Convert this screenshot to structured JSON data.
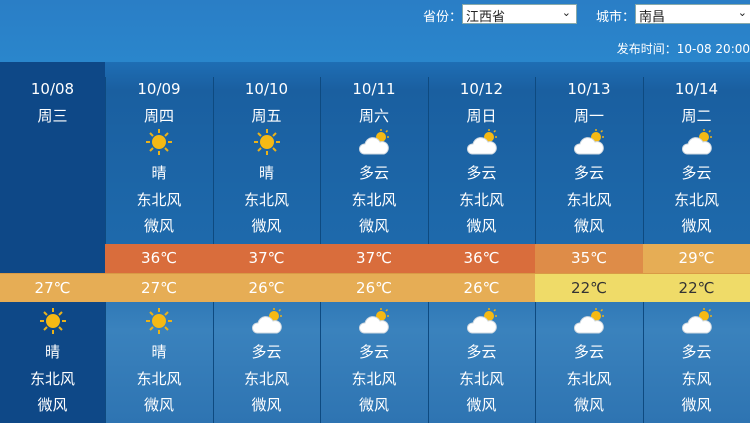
{
  "header": {
    "province_label": "省份：",
    "province_value": "江西省",
    "city_label": "城市：",
    "city_value": "南昌",
    "publish_label": "发布时间：",
    "publish_time": "10-08 20:00"
  },
  "days": [
    {
      "date": "10/08",
      "weekday": "周三",
      "day": null,
      "high": null,
      "low": "27℃",
      "night": {
        "icon": "sunny-icon",
        "weather": "晴",
        "wind": "东北风",
        "force": "微风"
      }
    },
    {
      "date": "10/09",
      "weekday": "周四",
      "day": {
        "icon": "sunny-icon",
        "weather": "晴",
        "wind": "东北风",
        "force": "微风"
      },
      "high": "36℃",
      "low": "27℃",
      "high_color": "#d96d3c",
      "low_color": "#e6ad55",
      "night": {
        "icon": "sunny-icon",
        "weather": "晴",
        "wind": "东北风",
        "force": "微风"
      }
    },
    {
      "date": "10/10",
      "weekday": "周五",
      "day": {
        "icon": "sunny-icon",
        "weather": "晴",
        "wind": "东北风",
        "force": "微风"
      },
      "high": "37℃",
      "low": "26℃",
      "high_color": "#d96d3c",
      "low_color": "#e6ad55",
      "night": {
        "icon": "partly-cloudy-icon",
        "weather": "多云",
        "wind": "东北风",
        "force": "微风"
      }
    },
    {
      "date": "10/11",
      "weekday": "周六",
      "day": {
        "icon": "partly-cloudy-icon",
        "weather": "多云",
        "wind": "东北风",
        "force": "微风"
      },
      "high": "37℃",
      "low": "26℃",
      "high_color": "#d96d3c",
      "low_color": "#e6ad55",
      "night": {
        "icon": "partly-cloudy-icon",
        "weather": "多云",
        "wind": "东北风",
        "force": "微风"
      }
    },
    {
      "date": "10/12",
      "weekday": "周日",
      "day": {
        "icon": "partly-cloudy-icon",
        "weather": "多云",
        "wind": "东北风",
        "force": "微风"
      },
      "high": "36℃",
      "low": "26℃",
      "high_color": "#d96d3c",
      "low_color": "#e6ad55",
      "night": {
        "icon": "partly-cloudy-icon",
        "weather": "多云",
        "wind": "东北风",
        "force": "微风"
      }
    },
    {
      "date": "10/13",
      "weekday": "周一",
      "day": {
        "icon": "partly-cloudy-icon",
        "weather": "多云",
        "wind": "东北风",
        "force": "微风"
      },
      "high": "35℃",
      "low": "22℃",
      "high_color": "#de8c48",
      "low_color": "#efdb68",
      "night": {
        "icon": "partly-cloudy-icon",
        "weather": "多云",
        "wind": "东北风",
        "force": "微风"
      }
    },
    {
      "date": "10/14",
      "weekday": "周二",
      "day": {
        "icon": "partly-cloudy-icon",
        "weather": "多云",
        "wind": "东北风",
        "force": "微风"
      },
      "high": "29℃",
      "low": "22℃",
      "high_color": "#e6ad55",
      "low_color": "#efdb68",
      "night": {
        "icon": "partly-cloudy-icon",
        "weather": "多云",
        "wind": "东风",
        "force": "微风"
      }
    }
  ]
}
